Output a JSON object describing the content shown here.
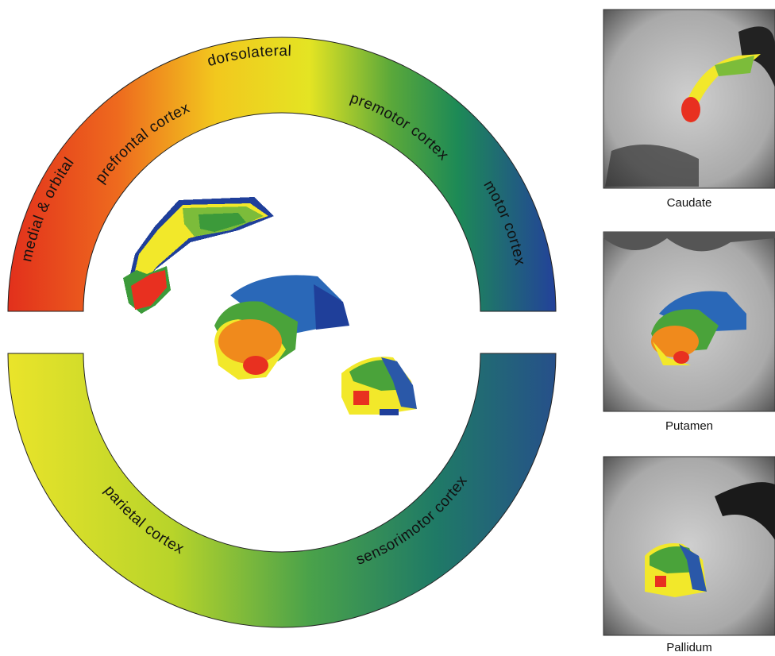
{
  "upper_arc": {
    "outer": [
      "medial & orbital",
      "dorsolateral"
    ],
    "inner": [
      "prefrontal cortex",
      "premotor cortex"
    ],
    "middle": [
      "motor cortex"
    ]
  },
  "lower_arc": [
    "parietal cortex",
    "sensorimotor cortex"
  ],
  "panels": [
    "Caudate",
    "Putamen",
    "Pallidum"
  ]
}
